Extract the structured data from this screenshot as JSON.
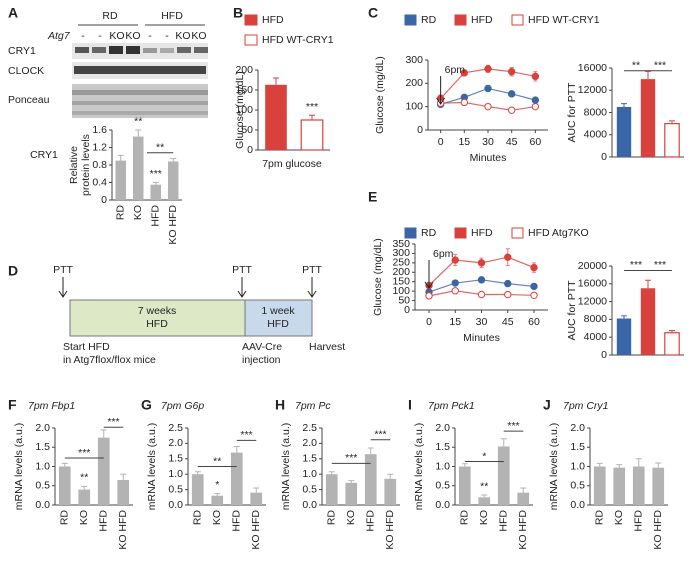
{
  "blot": {
    "panel": "A",
    "groups": [
      "RD",
      "HFD"
    ],
    "genotype_label": "Atg7",
    "genotypes": [
      "-",
      "-",
      "KO",
      "KO",
      "-",
      "-",
      "KO",
      "KO"
    ],
    "rows": [
      "CRY1",
      "CLOCK",
      "Ponceau"
    ]
  },
  "timeline": {
    "panel": "D",
    "checkpoints": [
      "PTT",
      "PTT",
      "PTT"
    ],
    "phase1": [
      "7 weeks",
      "HFD"
    ],
    "phase2": [
      "1 week",
      "HFD"
    ],
    "start": [
      "Start HFD",
      "in Atg7flox/flox mice"
    ],
    "injection": [
      "AAV-Cre",
      "injection"
    ],
    "end": "Harvest"
  },
  "chart_data": [
    {
      "type": "bar",
      "side_label": "CRY1",
      "y_label": [
        "Relative",
        "protein levels"
      ],
      "categories": [
        "RD",
        "KO",
        "HFD",
        "KO HFD"
      ],
      "values": [
        0.9,
        1.45,
        0.35,
        0.88
      ],
      "errors": [
        0.12,
        0.15,
        0.05,
        0.07
      ],
      "color": "#b3b3b3",
      "ylim": [
        0,
        1.6
      ],
      "yticks": [
        0,
        0.4,
        0.8,
        1.2,
        1.6
      ],
      "annotations": [
        "**",
        "***",
        "**"
      ]
    },
    {
      "type": "bar",
      "panel": "B",
      "y_label": "Glucose (mg/dL)",
      "x_label": "7pm glucose",
      "categories": [
        "HFD",
        "HFD WT-CRY1"
      ],
      "values": [
        163,
        75
      ],
      "errors": [
        17,
        12
      ],
      "colors": [
        "#d9413c",
        "#d9413c"
      ],
      "hollow": [
        false,
        true
      ],
      "ylim": [
        0,
        200
      ],
      "yticks": [
        0,
        50,
        100,
        150,
        200
      ],
      "annotations": [
        "***"
      ]
    },
    {
      "type": "line",
      "panel": "C",
      "y_label": "Glucose (mg/dL)",
      "x_label": "Minutes",
      "annotation": "6pm",
      "x": [
        0,
        15,
        30,
        45,
        60
      ],
      "xlim": [
        -8,
        68
      ],
      "xticks": [
        0,
        15,
        30,
        45,
        60
      ],
      "ylim": [
        0,
        300
      ],
      "yticks": [
        0,
        100,
        200,
        300
      ],
      "series": [
        {
          "name": "RD",
          "color": "#3a66a5",
          "hollow": false,
          "values": [
            110,
            140,
            178,
            155,
            128
          ],
          "errors": [
            8,
            10,
            12,
            10,
            8
          ]
        },
        {
          "name": "HFD",
          "color": "#d9413c",
          "hollow": false,
          "values": [
            135,
            245,
            262,
            250,
            230
          ],
          "errors": [
            15,
            12,
            15,
            18,
            20
          ]
        },
        {
          "name": "HFD WT-CRY1",
          "color": "#d9413c",
          "hollow": true,
          "values": [
            115,
            118,
            100,
            85,
            100
          ],
          "errors": [
            8,
            10,
            10,
            10,
            10
          ]
        }
      ]
    },
    {
      "type": "bar",
      "y_label": "AUC for PTT",
      "categories": [
        null,
        null,
        null
      ],
      "values": [
        9000,
        14000,
        6000
      ],
      "errors": [
        600,
        1400,
        500
      ],
      "colors": [
        "#3a66a5",
        "#d9413c",
        "#d9413c"
      ],
      "hollow": [
        false,
        false,
        true
      ],
      "ylim": [
        0,
        16000
      ],
      "yticks": [
        0,
        4000,
        8000,
        12000,
        16000
      ],
      "annotations": [
        "**",
        "***"
      ]
    },
    {
      "type": "line",
      "panel": "E",
      "y_label": "Glucose (mg/dL)",
      "x_label": "Minutes",
      "annotation": "6pm",
      "x": [
        0,
        15,
        30,
        45,
        60
      ],
      "xlim": [
        -8,
        68
      ],
      "xticks": [
        0,
        15,
        30,
        45,
        60
      ],
      "ylim": [
        0,
        350
      ],
      "yticks": [
        0,
        50,
        100,
        150,
        200,
        250,
        300,
        350
      ],
      "series": [
        {
          "name": "RD",
          "color": "#3a66a5",
          "hollow": false,
          "values": [
            95,
            143,
            160,
            140,
            125
          ],
          "errors": [
            8,
            10,
            10,
            10,
            8
          ]
        },
        {
          "name": "HFD",
          "color": "#d9413c",
          "hollow": false,
          "values": [
            130,
            265,
            250,
            280,
            225
          ],
          "errors": [
            15,
            30,
            25,
            45,
            25
          ]
        },
        {
          "name": "HFD Atg7KO",
          "color": "#d9413c",
          "hollow": true,
          "values": [
            75,
            102,
            82,
            82,
            78
          ],
          "errors": [
            6,
            8,
            8,
            8,
            6
          ]
        }
      ]
    },
    {
      "type": "bar",
      "y_label": "AUC for PTT",
      "categories": [
        null,
        null,
        null
      ],
      "values": [
        8200,
        15000,
        5000
      ],
      "errors": [
        600,
        1800,
        500
      ],
      "colors": [
        "#3a66a5",
        "#d9413c",
        "#d9413c"
      ],
      "hollow": [
        false,
        false,
        true
      ],
      "ylim": [
        0,
        20000
      ],
      "yticks": [
        0,
        4000,
        8000,
        12000,
        16000,
        20000
      ],
      "annotations": [
        "***",
        "***"
      ]
    },
    {
      "type": "bar",
      "panel": "F",
      "title": "7pm Fbp1",
      "y_label": "mRNA levels (a.u.)",
      "categories": [
        "RD",
        "KO",
        "HFD",
        "KO HFD"
      ],
      "values": [
        1.0,
        0.4,
        1.75,
        0.65
      ],
      "errors": [
        0.08,
        0.08,
        0.2,
        0.15
      ],
      "color": "#b3b3b3",
      "ylim": [
        0,
        2.0
      ],
      "yticks": [
        {
          "value": 0,
          "label": "0.0"
        },
        0.5,
        {
          "value": 1,
          "label": "1.0"
        },
        1.5,
        {
          "value": 2,
          "label": "2.0"
        }
      ],
      "annotations": [
        "**",
        "***",
        "***"
      ]
    },
    {
      "type": "bar",
      "panel": "G",
      "title": "7pm G6p",
      "y_label": "mRNA levels (a.u.)",
      "categories": [
        "RD",
        "KO",
        "HFD",
        "KO HFD"
      ],
      "values": [
        1.0,
        0.3,
        1.7,
        0.4
      ],
      "errors": [
        0.08,
        0.07,
        0.2,
        0.15
      ],
      "color": "#b3b3b3",
      "ylim": [
        0,
        2.5
      ],
      "yticks": [
        {
          "value": 0,
          "label": "0.0"
        },
        0.5,
        {
          "value": 1,
          "label": "1.0"
        },
        1.5,
        {
          "value": 2,
          "label": "2.0"
        },
        2.5
      ],
      "annotations": [
        "*",
        "**",
        "***"
      ]
    },
    {
      "type": "bar",
      "panel": "H",
      "title": "7pm Pc",
      "y_label": "mRNA levels (a.u.)",
      "categories": [
        "RD",
        "KO",
        "HFD",
        "KO HFD"
      ],
      "values": [
        1.0,
        0.72,
        1.65,
        0.85
      ],
      "errors": [
        0.08,
        0.07,
        0.2,
        0.15
      ],
      "color": "#b3b3b3",
      "ylim": [
        0,
        2.5
      ],
      "yticks": [
        {
          "value": 0,
          "label": "0.0"
        },
        0.5,
        {
          "value": 1,
          "label": "1.0"
        },
        1.5,
        {
          "value": 2,
          "label": "2.0"
        },
        2.5
      ],
      "annotations": [
        "***",
        "***"
      ]
    },
    {
      "type": "bar",
      "panel": "I",
      "title": "7pm Pck1",
      "y_label": "mRNA levels (a.u.)",
      "categories": [
        "RD",
        "KO",
        "HFD",
        "KO HFD"
      ],
      "values": [
        1.0,
        0.2,
        1.52,
        0.32
      ],
      "errors": [
        0.07,
        0.06,
        0.2,
        0.12
      ],
      "color": "#b3b3b3",
      "ylim": [
        0,
        2.0
      ],
      "yticks": [
        {
          "value": 0,
          "label": "0.0"
        },
        0.5,
        {
          "value": 1,
          "label": "1.0"
        },
        1.5,
        {
          "value": 2,
          "label": "2.0"
        }
      ],
      "annotations": [
        "**",
        "*",
        "***"
      ]
    },
    {
      "type": "bar",
      "panel": "J",
      "title": "7pm Cry1",
      "y_label": "mRNA levels (a.u.)",
      "categories": [
        "RD",
        "KO",
        "HFD",
        "KO HFD"
      ],
      "values": [
        1.0,
        0.97,
        1.0,
        0.97
      ],
      "errors": [
        0.08,
        0.08,
        0.2,
        0.12
      ],
      "color": "#b3b3b3",
      "ylim": [
        0,
        2.0
      ],
      "yticks": [
        {
          "value": 0,
          "label": "0.0"
        },
        0.5,
        {
          "value": 1,
          "label": "1.0"
        },
        1.5,
        {
          "value": 2,
          "label": "2.0"
        }
      ],
      "annotations": []
    }
  ]
}
